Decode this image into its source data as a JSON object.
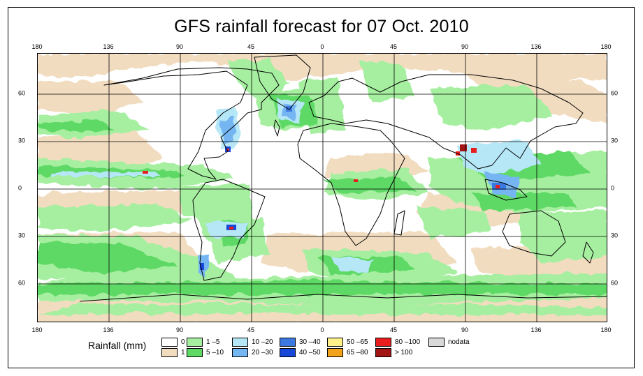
{
  "title": "GFS rainfall forecast for 07 Oct. 2010",
  "axes": {
    "top_lon_labels": [
      "180",
      "136",
      "90",
      "45",
      "0",
      "45",
      "90",
      "136",
      "180"
    ],
    "bottom_lon_labels": [
      "180",
      "136",
      "90",
      "45",
      "0",
      "45",
      "90",
      "136",
      "180"
    ],
    "left_lat_labels": [
      "60",
      "30",
      "0",
      "30",
      "60"
    ],
    "right_lat_labels": [
      "60",
      "30",
      "0",
      "30",
      "60"
    ]
  },
  "legend": {
    "title": "Rainfall (mm)",
    "items": [
      {
        "label": "0",
        "color": "#ffffff"
      },
      {
        "label": "1",
        "color": "#f2dcc0"
      },
      {
        "label": "1 –5",
        "color": "#a6efa0"
      },
      {
        "label": "5 –10",
        "color": "#5fd965"
      },
      {
        "label": "10 –20",
        "color": "#b6e7f7"
      },
      {
        "label": "20 –30",
        "color": "#74b6f2"
      },
      {
        "label": "30 –40",
        "color": "#3b78e0"
      },
      {
        "label": "40 –50",
        "color": "#1848d8"
      },
      {
        "label": "50 –65",
        "color": "#fff08a"
      },
      {
        "label": "65 –80",
        "color": "#f2a31b"
      },
      {
        "label": "80 –100",
        "color": "#e81e1e"
      },
      {
        "label": "> 100",
        "color": "#a01414"
      },
      {
        "label": "nodata",
        "color": "#d9d9d9"
      }
    ]
  }
}
